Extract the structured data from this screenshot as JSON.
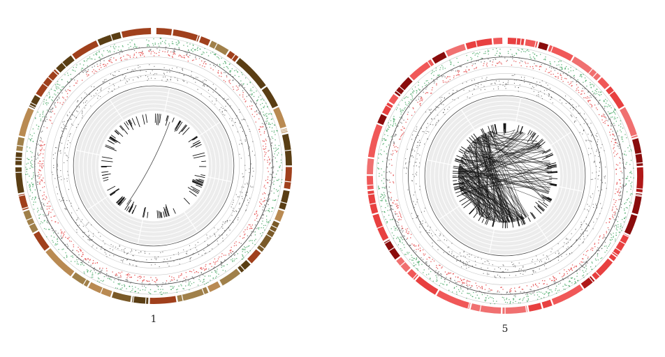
{
  "figures": [
    {
      "label": "1",
      "ideogram_colors": [
        "#a0804a",
        "#7a5a28",
        "#5a3e14",
        "#b98a52",
        "#a0401c"
      ],
      "gain_color": "#3aa05a",
      "loss_color": "#e03030",
      "point_color": "#333333",
      "background_ring_color": "#ececec"
    },
    {
      "label": "5",
      "ideogram_colors": [
        "#f05858",
        "#b01818",
        "#e84040",
        "#8a0c0c",
        "#f07070"
      ],
      "gain_color": "#3aa05a",
      "loss_color": "#e03030",
      "point_color": "#333333",
      "background_ring_color": "#ececec"
    }
  ]
}
